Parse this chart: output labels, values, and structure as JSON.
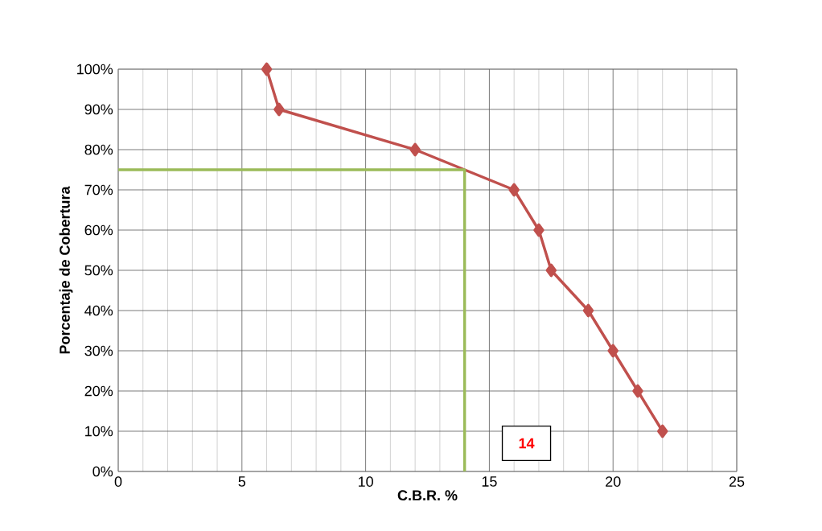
{
  "chart_data": {
    "type": "line",
    "xlabel": "C.B.R.  %",
    "ylabel": "Porcentaje de Cobertura",
    "series": [
      {
        "color": "#c0504d",
        "marker": "diamond",
        "x": [
          6,
          6.5,
          12,
          16,
          17,
          17.5,
          19,
          20,
          21,
          22
        ],
        "values": [
          100,
          90,
          80,
          70,
          60,
          50,
          40,
          30,
          20,
          10
        ]
      },
      {
        "color": "#9bbb59",
        "marker": "none",
        "x": [
          0,
          14,
          14
        ],
        "values": [
          75,
          75,
          0
        ]
      }
    ],
    "annotations": [
      "14"
    ],
    "xlim": [
      0,
      25
    ],
    "xticks": [
      0,
      5,
      10,
      15,
      20,
      25
    ],
    "ylim": [
      0,
      100
    ],
    "yticks": [
      {
        "value": 0,
        "label": "0%"
      },
      {
        "value": 10,
        "label": "10%"
      },
      {
        "value": 20,
        "label": "20%"
      },
      {
        "value": 30,
        "label": "30%"
      },
      {
        "value": 40,
        "label": "40%"
      },
      {
        "value": 50,
        "label": "50%"
      },
      {
        "value": 60,
        "label": "60%"
      },
      {
        "value": 70,
        "label": "70%"
      },
      {
        "value": 80,
        "label": "80%"
      },
      {
        "value": 90,
        "label": "90%"
      },
      {
        "value": 100,
        "label": "100%"
      }
    ],
    "grid": true,
    "line_style": "solid"
  }
}
